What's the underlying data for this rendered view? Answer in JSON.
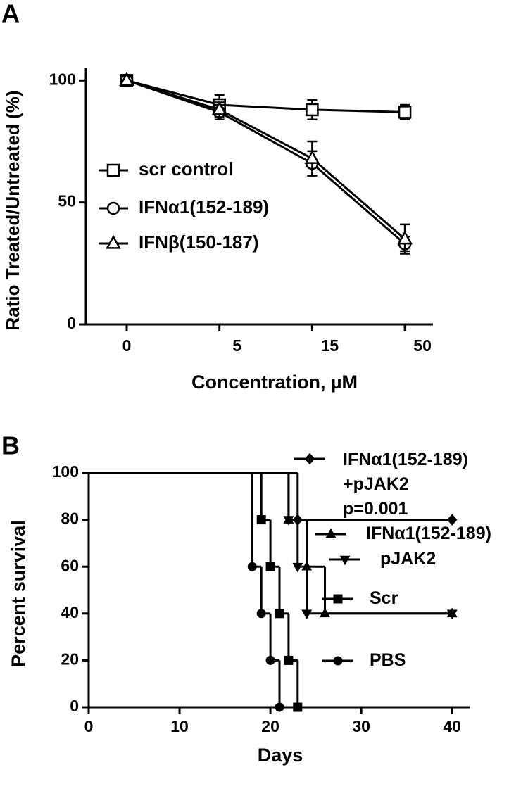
{
  "chart_data": [
    {
      "type": "line",
      "panel_label": "A",
      "y_label": "Ratio Treated/Untreated (%)",
      "x_label": "Concentration, µM",
      "categories": [
        "0",
        "5",
        "15",
        "50"
      ],
      "ylim": [
        0,
        105
      ],
      "yticks": [
        0,
        50,
        100
      ],
      "legend": "left",
      "series": [
        {
          "name": "scr control",
          "color": "#000000",
          "marker": "square",
          "values": [
            100,
            90,
            88,
            87
          ],
          "errors": [
            2,
            4,
            4,
            3
          ]
        },
        {
          "name": "IFNα1(152-189)",
          "color": "#000000",
          "marker": "circle",
          "values": [
            100,
            87,
            66,
            33
          ],
          "errors": [
            2,
            3,
            5,
            3
          ]
        },
        {
          "name": "IFNβ(150-187)",
          "color": "#000000",
          "marker": "triangle-up",
          "values": [
            100,
            88,
            68,
            35
          ],
          "errors": [
            2,
            3,
            7,
            6
          ]
        }
      ]
    },
    {
      "type": "survival",
      "panel_label": "B",
      "y_label": "Percent survival",
      "x_label": "Days",
      "xlim": [
        0,
        42
      ],
      "xticks": [
        0,
        10,
        20,
        30,
        40
      ],
      "ylim": [
        0,
        100
      ],
      "yticks": [
        0,
        20,
        40,
        60,
        80,
        100
      ],
      "annotation": "p=0.001",
      "series": [
        {
          "name": "IFNα1(152-189)\n+pJAK2",
          "color": "#000000",
          "marker": "diamond",
          "x": [
            0,
            23,
            40
          ],
          "values": [
            100,
            80,
            80
          ]
        },
        {
          "name": "IFNα1(152-189)",
          "color": "#000000",
          "marker": "triangle-up",
          "x": [
            0,
            22,
            24,
            26,
            40
          ],
          "values": [
            100,
            80,
            60,
            40,
            40
          ]
        },
        {
          "name": "pJAK2",
          "color": "#000000",
          "marker": "triangle-down",
          "x": [
            0,
            22,
            23,
            24,
            40
          ],
          "values": [
            100,
            80,
            60,
            40,
            40
          ]
        },
        {
          "name": "Scr",
          "color": "#000000",
          "marker": "square",
          "x": [
            0,
            19,
            20,
            21,
            22,
            23
          ],
          "values": [
            100,
            80,
            60,
            40,
            20,
            0
          ]
        },
        {
          "name": "PBS",
          "color": "#000000",
          "marker": "circle",
          "x": [
            0,
            18,
            19,
            20,
            21
          ],
          "values": [
            100,
            60,
            40,
            20,
            0
          ]
        }
      ]
    }
  ]
}
